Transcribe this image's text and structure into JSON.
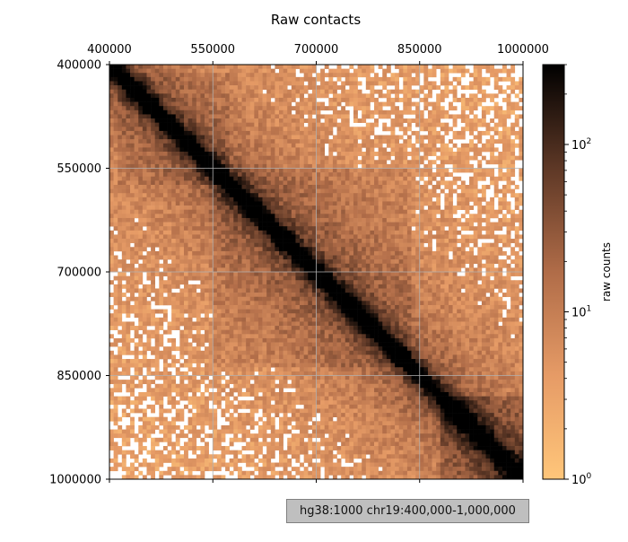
{
  "chart_data": {
    "type": "heatmap",
    "title": "Raw contacts",
    "x_ticks": [
      "400000",
      "550000",
      "700000",
      "850000",
      "1000000"
    ],
    "y_ticks": [
      "400000",
      "550000",
      "700000",
      "850000",
      "1000000"
    ],
    "xlim": [
      400000,
      1000000
    ],
    "ylim": [
      400000,
      1000000
    ],
    "y_axis_inverted": true,
    "grid": true,
    "colormap": "copper_r",
    "colorbar": {
      "label": "raw counts",
      "scale": "log",
      "ticks": [
        {
          "value": 1,
          "label": "10",
          "exp": "0"
        },
        {
          "value": 10,
          "label": "10",
          "exp": "1"
        },
        {
          "value": 100,
          "label": "10",
          "exp": "2"
        }
      ],
      "range": [
        1,
        300
      ]
    },
    "colors": {
      "low": "#ffc67a",
      "mid": "#b06c48",
      "high": "#000000"
    },
    "annotation": "hg38:1000 chr19:400,000-1,000,000"
  }
}
